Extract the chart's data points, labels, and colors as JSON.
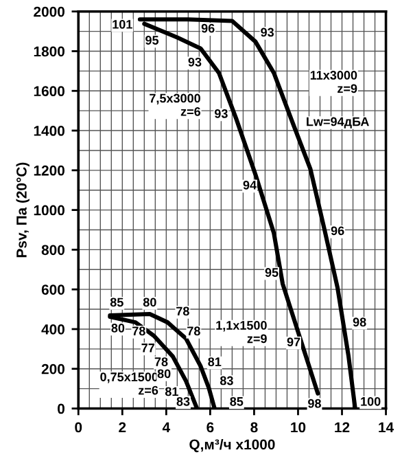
{
  "chart_data": {
    "type": "line",
    "xlabel": "Q,м³/ч x1000",
    "ylabel": "Psv, Па (20°C)",
    "xlim": [
      0,
      14
    ],
    "ylim": [
      0,
      2000
    ],
    "xticks": [
      0,
      2,
      4,
      6,
      8,
      10,
      12,
      14
    ],
    "yticks": [
      0,
      200,
      400,
      600,
      800,
      1000,
      1200,
      1400,
      1600,
      1800,
      2000
    ],
    "grid": true,
    "marker": "none",
    "line_style": "solid",
    "series": [
      {
        "name": "11x3000\nz=9",
        "color": "#000000",
        "x": [
          2.8,
          5,
          7.0,
          8.06,
          8.9,
          9.7,
          10.56,
          11.2,
          11.8,
          12.3,
          12.6
        ],
        "values": [
          1960,
          1960,
          1952,
          1848,
          1690,
          1455,
          1207,
          903,
          607,
          262,
          0
        ]
      },
      {
        "name": "7,5x3000\nz=6",
        "color": "#000000",
        "x": [
          3.0,
          4.5,
          5.56,
          6.4,
          7.2,
          8.06,
          8.9,
          9.3,
          10.1,
          10.9
        ],
        "values": [
          1938,
          1869,
          1814,
          1690,
          1455,
          1179,
          883,
          628,
          352,
          76
        ]
      },
      {
        "name": "1,1x1500\nz=9",
        "color": "#000000",
        "x": [
          1.44,
          3.25,
          4.06,
          4.9,
          5.56,
          5.94,
          6.2
        ],
        "values": [
          469,
          476,
          434,
          352,
          214,
          103,
          0
        ]
      },
      {
        "name": "0,75x1500\nz=6",
        "color": "#000000",
        "x": [
          1.44,
          2.6,
          3.44,
          4.3,
          4.9,
          5.4
        ],
        "values": [
          462,
          434,
          366,
          262,
          138,
          0
        ]
      }
    ],
    "annotations": [
      {
        "text": "101",
        "x": 2.0,
        "y": 1930
      },
      {
        "text": "96",
        "x": 5.9,
        "y": 1910
      },
      {
        "text": "93",
        "x": 8.6,
        "y": 1890
      },
      {
        "text": "95",
        "x": 3.35,
        "y": 1850
      },
      {
        "text": "93",
        "x": 5.3,
        "y": 1740
      },
      {
        "text": "93",
        "x": 6.5,
        "y": 1480
      },
      "Lw=94дБА",
      {
        "text": "94",
        "x": 7.8,
        "y": 1120
      },
      {
        "text": "96",
        "x": 11.8,
        "y": 890
      },
      {
        "text": "95",
        "x": 8.8,
        "y": 680
      },
      {
        "text": "98",
        "x": 12.8,
        "y": 430
      },
      {
        "text": "97",
        "x": 9.8,
        "y": 330
      },
      {
        "text": "98",
        "x": 10.75,
        "y": 20
      },
      {
        "text": "100",
        "x": 13.3,
        "y": 30
      },
      {
        "text": "85",
        "x": 1.75,
        "y": 530
      },
      {
        "text": "80",
        "x": 3.25,
        "y": 530
      },
      {
        "text": "78",
        "x": 4.75,
        "y": 485
      },
      {
        "text": "80",
        "x": 1.8,
        "y": 400
      },
      {
        "text": "78",
        "x": 2.75,
        "y": 385
      },
      {
        "text": "78",
        "x": 5.25,
        "y": 385
      },
      {
        "text": "77",
        "x": 3.17,
        "y": 300
      },
      {
        "text": "78",
        "x": 3.77,
        "y": 230
      },
      {
        "text": "80",
        "x": 3.9,
        "y": 170
      },
      {
        "text": "81",
        "x": 4.25,
        "y": 80
      },
      {
        "text": "83",
        "x": 4.77,
        "y": 30
      },
      {
        "text": "81",
        "x": 6.2,
        "y": 230
      },
      {
        "text": "83",
        "x": 6.75,
        "y": 135
      },
      {
        "text": "85",
        "x": 7.2,
        "y": 30
      }
    ]
  }
}
